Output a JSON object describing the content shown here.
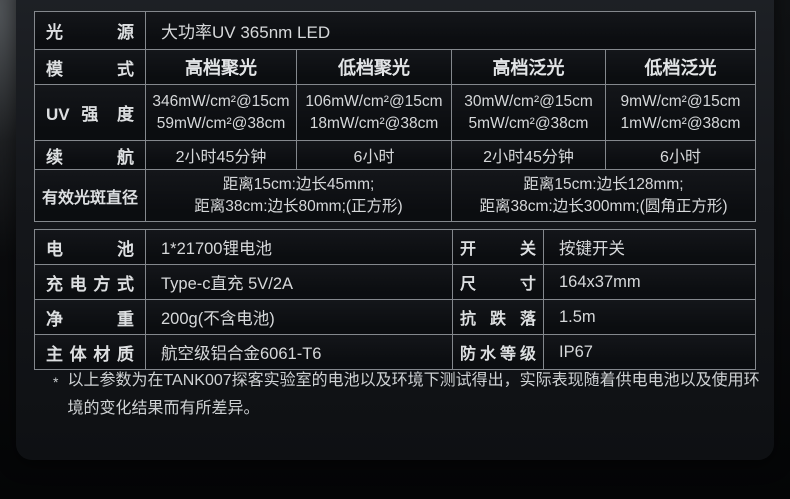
{
  "colors": {
    "grid_line": "#84888d",
    "panel_bg": "#15171b",
    "page_bg": "#0a0b0d",
    "text": "#d6d8da"
  },
  "table1": {
    "source": {
      "label": "光 源",
      "value": "大功率UV 365nm LED"
    },
    "mode": {
      "label": "模 式",
      "cols": [
        "高档聚光",
        "低档聚光",
        "高档泛光",
        "低档泛光"
      ]
    },
    "uv": {
      "label": "UV 强 度",
      "cols": [
        {
          "line1": "346mW/cm²@15cm",
          "line2": "59mW/cm²@38cm"
        },
        {
          "line1": "106mW/cm²@15cm",
          "line2": "18mW/cm²@38cm"
        },
        {
          "line1": "30mW/cm²@15cm",
          "line2": "5mW/cm²@38cm"
        },
        {
          "line1": "9mW/cm²@15cm",
          "line2": "1mW/cm²@38cm"
        }
      ]
    },
    "runtime": {
      "label": "续 航",
      "cols": [
        "2小时45分钟",
        "6小时",
        "2小时45分钟",
        "6小时"
      ]
    },
    "spot": {
      "label": "有效光斑直径",
      "cells": [
        {
          "line1": "距离15cm:边长45mm;",
          "line2": "距离38cm:边长80mm;(正方形)"
        },
        {
          "line1": "距离15cm:边长128mm;",
          "line2": "距离38cm:边长300mm;(圆角正方形)"
        }
      ]
    }
  },
  "table2": {
    "rows": [
      {
        "label_a": "电 池",
        "value_a": "1*21700锂电池",
        "label_b": "开 关",
        "value_b": "按键开关"
      },
      {
        "label_a": "充电方式",
        "value_a": "Type-c直充 5V/2A",
        "label_b": "尺 寸",
        "value_b": "164x37mm"
      },
      {
        "label_a": "净 重",
        "value_a": "200g(不含电池)",
        "label_b": "抗 跌 落",
        "value_b": "1.5m"
      },
      {
        "label_a": "主体材质",
        "value_a": "航空级铝合金6061-T6",
        "label_b": "防水等级",
        "value_b": "IP67"
      }
    ]
  },
  "footnote": {
    "marker": "*",
    "text": "以上参数为在TANK007探客实验室的电池以及环境下测试得出，实际表现随着供电电池以及使用环境的变化结果而有所差异。"
  }
}
